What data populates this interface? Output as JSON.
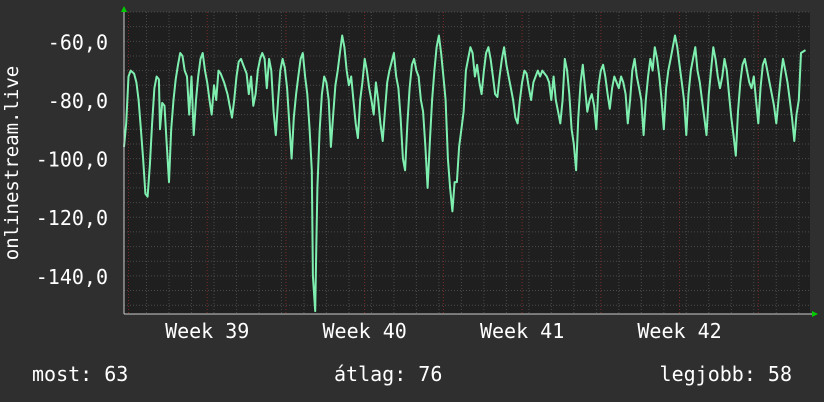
{
  "chart_data": {
    "type": "line",
    "ylabel": "onlinestream.live",
    "ylim": [
      -153,
      -50
    ],
    "yticks": [
      -60,
      -80,
      -100,
      -120,
      -140
    ],
    "ytick_labels": [
      "-60,0",
      "-80,0",
      "-100,0",
      "-120,0",
      "-140,0"
    ],
    "xticks": [
      {
        "label": "Week 39",
        "x": 3.7
      },
      {
        "label": "Week 40",
        "x": 10.7
      },
      {
        "label": "Week 41",
        "x": 17.7
      },
      {
        "label": "Week 42",
        "x": 24.7
      }
    ],
    "xlim": [
      0,
      30.5
    ],
    "grid": true,
    "colors": {
      "background": "#2f2f2f",
      "plot": "#1f1f1f",
      "line": "#7fefb0",
      "grid": "#4a4a4a",
      "major_grid": "#7a2a2a",
      "axis_arrow": "#00cc00",
      "text": "#ffffff"
    },
    "series": [
      {
        "values": [
          [
            0.0,
            -96
          ],
          [
            0.1,
            -88
          ],
          [
            0.2,
            -72
          ],
          [
            0.3,
            -70
          ],
          [
            0.45,
            -71
          ],
          [
            0.55,
            -74
          ],
          [
            0.65,
            -80
          ],
          [
            0.75,
            -90
          ],
          [
            0.85,
            -100
          ],
          [
            0.95,
            -112
          ],
          [
            1.05,
            -113
          ],
          [
            1.15,
            -102
          ],
          [
            1.25,
            -88
          ],
          [
            1.35,
            -76
          ],
          [
            1.45,
            -72
          ],
          [
            1.55,
            -73
          ],
          [
            1.6,
            -90
          ],
          [
            1.7,
            -81
          ],
          [
            1.8,
            -82
          ],
          [
            1.9,
            -95
          ],
          [
            2.0,
            -108
          ],
          [
            2.1,
            -90
          ],
          [
            2.2,
            -80
          ],
          [
            2.3,
            -73
          ],
          [
            2.4,
            -68
          ],
          [
            2.5,
            -64
          ],
          [
            2.6,
            -65
          ],
          [
            2.7,
            -70
          ],
          [
            2.8,
            -72
          ],
          [
            2.9,
            -85
          ],
          [
            3.0,
            -72
          ],
          [
            3.1,
            -92
          ],
          [
            3.2,
            -80
          ],
          [
            3.3,
            -72
          ],
          [
            3.4,
            -66
          ],
          [
            3.5,
            -64
          ],
          [
            3.6,
            -70
          ],
          [
            3.7,
            -74
          ],
          [
            3.8,
            -80
          ],
          [
            3.9,
            -85
          ],
          [
            4.0,
            -75
          ],
          [
            4.1,
            -80
          ],
          [
            4.2,
            -70
          ],
          [
            4.3,
            -71
          ],
          [
            4.45,
            -74
          ],
          [
            4.6,
            -78
          ],
          [
            4.7,
            -82
          ],
          [
            4.8,
            -86
          ],
          [
            4.9,
            -80
          ],
          [
            5.0,
            -72
          ],
          [
            5.1,
            -67
          ],
          [
            5.2,
            -66
          ],
          [
            5.3,
            -68
          ],
          [
            5.45,
            -71
          ],
          [
            5.55,
            -78
          ],
          [
            5.65,
            -72
          ],
          [
            5.75,
            -82
          ],
          [
            5.85,
            -78
          ],
          [
            5.95,
            -70
          ],
          [
            6.05,
            -66
          ],
          [
            6.15,
            -64
          ],
          [
            6.25,
            -66
          ],
          [
            6.35,
            -76
          ],
          [
            6.45,
            -66
          ],
          [
            6.55,
            -70
          ],
          [
            6.65,
            -84
          ],
          [
            6.75,
            -92
          ],
          [
            6.85,
            -80
          ],
          [
            6.95,
            -70
          ],
          [
            7.05,
            -66
          ],
          [
            7.15,
            -69
          ],
          [
            7.25,
            -76
          ],
          [
            7.35,
            -88
          ],
          [
            7.45,
            -100
          ],
          [
            7.55,
            -86
          ],
          [
            7.65,
            -78
          ],
          [
            7.75,
            -72
          ],
          [
            7.85,
            -66
          ],
          [
            7.95,
            -64
          ],
          [
            8.05,
            -72
          ],
          [
            8.15,
            -78
          ],
          [
            8.25,
            -90
          ],
          [
            8.35,
            -104
          ],
          [
            8.4,
            -140
          ],
          [
            8.5,
            -152
          ],
          [
            8.55,
            -130
          ],
          [
            8.6,
            -110
          ],
          [
            8.7,
            -90
          ],
          [
            8.8,
            -78
          ],
          [
            8.9,
            -72
          ],
          [
            9.0,
            -74
          ],
          [
            9.1,
            -80
          ],
          [
            9.2,
            -96
          ],
          [
            9.3,
            -85
          ],
          [
            9.4,
            -75
          ],
          [
            9.5,
            -70
          ],
          [
            9.6,
            -64
          ],
          [
            9.7,
            -58
          ],
          [
            9.8,
            -62
          ],
          [
            9.9,
            -70
          ],
          [
            10.0,
            -75
          ],
          [
            10.1,
            -72
          ],
          [
            10.2,
            -80
          ],
          [
            10.3,
            -88
          ],
          [
            10.4,
            -93
          ],
          [
            10.5,
            -80
          ],
          [
            10.6,
            -74
          ],
          [
            10.7,
            -66
          ],
          [
            10.8,
            -70
          ],
          [
            10.9,
            -76
          ],
          [
            11.0,
            -80
          ],
          [
            11.1,
            -85
          ],
          [
            11.2,
            -74
          ],
          [
            11.3,
            -80
          ],
          [
            11.4,
            -88
          ],
          [
            11.5,
            -94
          ],
          [
            11.6,
            -84
          ],
          [
            11.7,
            -74
          ],
          [
            11.8,
            -70
          ],
          [
            11.9,
            -67
          ],
          [
            12.0,
            -64
          ],
          [
            12.1,
            -72
          ],
          [
            12.2,
            -76
          ],
          [
            12.3,
            -86
          ],
          [
            12.4,
            -100
          ],
          [
            12.5,
            -104
          ],
          [
            12.6,
            -88
          ],
          [
            12.7,
            -76
          ],
          [
            12.8,
            -68
          ],
          [
            12.9,
            -66
          ],
          [
            13.0,
            -70
          ],
          [
            13.1,
            -72
          ],
          [
            13.2,
            -80
          ],
          [
            13.3,
            -84
          ],
          [
            13.4,
            -96
          ],
          [
            13.5,
            -110
          ],
          [
            13.6,
            -94
          ],
          [
            13.7,
            -80
          ],
          [
            13.8,
            -70
          ],
          [
            13.9,
            -62
          ],
          [
            14.0,
            -58
          ],
          [
            14.1,
            -64
          ],
          [
            14.2,
            -72
          ],
          [
            14.3,
            -80
          ],
          [
            14.4,
            -100
          ],
          [
            14.5,
            -110
          ],
          [
            14.6,
            -118
          ],
          [
            14.7,
            -108
          ],
          [
            14.8,
            -108
          ],
          [
            14.9,
            -96
          ],
          [
            15.0,
            -90
          ],
          [
            15.1,
            -84
          ],
          [
            15.2,
            -70
          ],
          [
            15.3,
            -66
          ],
          [
            15.4,
            -62
          ],
          [
            15.5,
            -64
          ],
          [
            15.6,
            -72
          ],
          [
            15.7,
            -68
          ],
          [
            15.8,
            -74
          ],
          [
            15.9,
            -78
          ],
          [
            16.0,
            -70
          ],
          [
            16.1,
            -64
          ],
          [
            16.2,
            -62
          ],
          [
            16.3,
            -66
          ],
          [
            16.4,
            -72
          ],
          [
            16.5,
            -78
          ],
          [
            16.6,
            -79
          ],
          [
            16.7,
            -72
          ],
          [
            16.8,
            -66
          ],
          [
            16.9,
            -62
          ],
          [
            17.0,
            -68
          ],
          [
            17.1,
            -72
          ],
          [
            17.2,
            -76
          ],
          [
            17.3,
            -80
          ],
          [
            17.4,
            -86
          ],
          [
            17.5,
            -88
          ],
          [
            17.6,
            -80
          ],
          [
            17.7,
            -74
          ],
          [
            17.8,
            -70
          ],
          [
            17.9,
            -71
          ],
          [
            18.0,
            -76
          ],
          [
            18.1,
            -80
          ],
          [
            18.2,
            -74
          ],
          [
            18.3,
            -72
          ],
          [
            18.4,
            -70
          ],
          [
            18.5,
            -72
          ],
          [
            18.6,
            -70
          ],
          [
            18.7,
            -71
          ],
          [
            18.8,
            -72
          ],
          [
            18.9,
            -74
          ],
          [
            19.0,
            -80
          ],
          [
            19.1,
            -72
          ],
          [
            19.2,
            -80
          ],
          [
            19.3,
            -84
          ],
          [
            19.4,
            -88
          ],
          [
            19.5,
            -80
          ],
          [
            19.6,
            -66
          ],
          [
            19.7,
            -70
          ],
          [
            19.8,
            -78
          ],
          [
            19.9,
            -90
          ],
          [
            20.0,
            -95
          ],
          [
            20.1,
            -104
          ],
          [
            20.2,
            -86
          ],
          [
            20.3,
            -74
          ],
          [
            20.4,
            -68
          ],
          [
            20.5,
            -76
          ],
          [
            20.6,
            -84
          ],
          [
            20.7,
            -80
          ],
          [
            20.8,
            -78
          ],
          [
            20.9,
            -82
          ],
          [
            21.0,
            -90
          ],
          [
            21.1,
            -75
          ],
          [
            21.2,
            -70
          ],
          [
            21.3,
            -68
          ],
          [
            21.4,
            -72
          ],
          [
            21.5,
            -78
          ],
          [
            21.6,
            -83
          ],
          [
            21.7,
            -76
          ],
          [
            21.8,
            -72
          ],
          [
            21.9,
            -74
          ],
          [
            22.0,
            -76
          ],
          [
            22.1,
            -72
          ],
          [
            22.2,
            -74
          ],
          [
            22.3,
            -78
          ],
          [
            22.4,
            -88
          ],
          [
            22.5,
            -80
          ],
          [
            22.6,
            -70
          ],
          [
            22.7,
            -66
          ],
          [
            22.8,
            -72
          ],
          [
            22.9,
            -76
          ],
          [
            23.0,
            -80
          ],
          [
            23.1,
            -92
          ],
          [
            23.2,
            -80
          ],
          [
            23.3,
            -72
          ],
          [
            23.4,
            -66
          ],
          [
            23.5,
            -70
          ],
          [
            23.6,
            -62
          ],
          [
            23.7,
            -66
          ],
          [
            23.8,
            -72
          ],
          [
            23.9,
            -80
          ],
          [
            24.0,
            -90
          ],
          [
            24.1,
            -76
          ],
          [
            24.2,
            -70
          ],
          [
            24.3,
            -66
          ],
          [
            24.4,
            -62
          ],
          [
            24.5,
            -58
          ],
          [
            24.6,
            -62
          ],
          [
            24.7,
            -68
          ],
          [
            24.8,
            -74
          ],
          [
            24.9,
            -80
          ],
          [
            25.0,
            -92
          ],
          [
            25.1,
            -78
          ],
          [
            25.2,
            -70
          ],
          [
            25.3,
            -66
          ],
          [
            25.4,
            -62
          ],
          [
            25.5,
            -70
          ],
          [
            25.6,
            -74
          ],
          [
            25.7,
            -80
          ],
          [
            25.8,
            -86
          ],
          [
            25.9,
            -92
          ],
          [
            26.0,
            -78
          ],
          [
            26.1,
            -70
          ],
          [
            26.2,
            -62
          ],
          [
            26.3,
            -66
          ],
          [
            26.4,
            -72
          ],
          [
            26.5,
            -76
          ],
          [
            26.6,
            -72
          ],
          [
            26.7,
            -66
          ],
          [
            26.8,
            -70
          ],
          [
            26.9,
            -78
          ],
          [
            27.0,
            -86
          ],
          [
            27.1,
            -92
          ],
          [
            27.2,
            -99
          ],
          [
            27.3,
            -84
          ],
          [
            27.4,
            -74
          ],
          [
            27.5,
            -68
          ],
          [
            27.6,
            -66
          ],
          [
            27.7,
            -70
          ],
          [
            27.8,
            -74
          ],
          [
            27.9,
            -76
          ],
          [
            28.0,
            -72
          ],
          [
            28.1,
            -80
          ],
          [
            28.2,
            -88
          ],
          [
            28.3,
            -76
          ],
          [
            28.4,
            -68
          ],
          [
            28.5,
            -66
          ],
          [
            28.6,
            -70
          ],
          [
            28.7,
            -74
          ],
          [
            28.8,
            -78
          ],
          [
            28.9,
            -82
          ],
          [
            29.0,
            -88
          ],
          [
            29.1,
            -80
          ],
          [
            29.2,
            -72
          ],
          [
            29.3,
            -66
          ],
          [
            29.4,
            -70
          ],
          [
            29.5,
            -74
          ],
          [
            29.6,
            -80
          ],
          [
            29.7,
            -86
          ],
          [
            29.8,
            -94
          ],
          [
            29.9,
            -85
          ],
          [
            30.0,
            -80
          ],
          [
            30.1,
            -64
          ],
          [
            30.3,
            -63
          ]
        ]
      }
    ]
  },
  "stats": {
    "current": "most: 63",
    "average": "átlag: 76",
    "best": "legjobb: 58"
  }
}
